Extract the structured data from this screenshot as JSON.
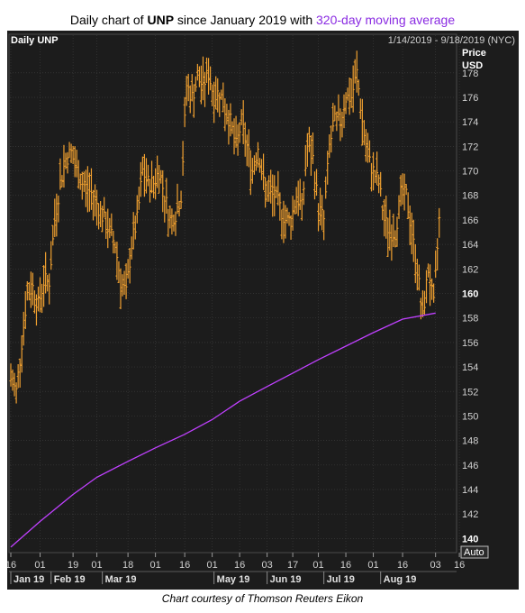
{
  "header": {
    "title_pre": "Daily chart of ",
    "ticker": "UNP",
    "title_mid": " since January 2019 with ",
    "ma_label": "320-day moving average"
  },
  "panel": {
    "label": "Daily UNP",
    "date_range": "1/14/2019 - 9/18/2019 (NYC)",
    "price_label": "Price",
    "currency": "USD",
    "auto_label": "Auto"
  },
  "caption": "Chart courtesy of Thomson Reuters Eikon",
  "colors": {
    "price": "#f0a030",
    "ma": "#c040ff",
    "background": "#1c1c1c",
    "grid": "#3a3a3a"
  },
  "chart_data": {
    "type": "ohlc",
    "ylim": [
      139,
      181
    ],
    "y_ticks": [
      140,
      142,
      144,
      146,
      148,
      150,
      152,
      154,
      156,
      158,
      160,
      162,
      164,
      166,
      168,
      170,
      172,
      174,
      176,
      178
    ],
    "highlighted_y_ticks": [
      140,
      160
    ],
    "x_ticks": [
      {
        "day": 0,
        "label": "16"
      },
      {
        "day": 16,
        "label": "01"
      },
      {
        "day": 34,
        "label": "19"
      },
      {
        "day": 47,
        "label": "01"
      },
      {
        "day": 64,
        "label": "18"
      },
      {
        "day": 79,
        "label": "01"
      },
      {
        "day": 95,
        "label": "16"
      },
      {
        "day": 110,
        "label": "01"
      },
      {
        "day": 125,
        "label": "16"
      },
      {
        "day": 140,
        "label": "03"
      },
      {
        "day": 154,
        "label": "17"
      },
      {
        "day": 168,
        "label": "01"
      },
      {
        "day": 183,
        "label": "16"
      },
      {
        "day": 198,
        "label": "01"
      },
      {
        "day": 214,
        "label": "16"
      },
      {
        "day": 232,
        "label": "03"
      },
      {
        "day": 245,
        "label": "16"
      }
    ],
    "months": [
      {
        "day": 0,
        "label": "Jan 19"
      },
      {
        "day": 22,
        "label": "Feb 19"
      },
      {
        "day": 50,
        "label": "Mar 19"
      },
      {
        "day": 111,
        "label": "May 19"
      },
      {
        "day": 140,
        "label": "Jun 19"
      },
      {
        "day": 171,
        "label": "Jul 19"
      },
      {
        "day": 202,
        "label": "Aug 19"
      }
    ],
    "moving_average": {
      "name": "320-day moving average",
      "days": [
        0,
        16,
        34,
        47,
        64,
        79,
        95,
        110,
        125,
        140,
        154,
        168,
        183,
        198,
        214,
        232
      ],
      "values": [
        139.3,
        141.4,
        143.6,
        145.0,
        146.3,
        147.4,
        148.5,
        149.7,
        151.2,
        152.4,
        153.5,
        154.6,
        155.7,
        156.8,
        157.9,
        158.4
      ]
    },
    "series_close": {
      "days": [
        0,
        3,
        6,
        9,
        12,
        15,
        18,
        21,
        24,
        27,
        30,
        33,
        36,
        39,
        42,
        45,
        48,
        51,
        54,
        57,
        60,
        63,
        66,
        69,
        72,
        75,
        78,
        81,
        84,
        87,
        90,
        93,
        96,
        99,
        102,
        105,
        108,
        111,
        114,
        117,
        120,
        123,
        126,
        129,
        132,
        135,
        138,
        141,
        144,
        147,
        150,
        153,
        156,
        159,
        162,
        165,
        168,
        171,
        174,
        177,
        180,
        183,
        186,
        189,
        192,
        195,
        198,
        201,
        204,
        207,
        210,
        213,
        216,
        219,
        222,
        225,
        228,
        231,
        234
      ],
      "values": [
        153,
        152,
        156,
        160,
        160.5,
        159,
        161,
        161,
        166,
        169,
        171,
        171.5,
        170,
        169,
        168.5,
        168,
        167,
        166,
        165,
        164,
        161,
        160,
        164,
        166,
        170,
        169,
        169,
        170,
        168,
        166,
        166.5,
        168,
        177,
        176,
        177.5,
        177,
        178,
        176,
        176.5,
        175,
        174,
        172,
        174,
        172,
        170,
        172,
        169,
        168,
        168,
        167,
        166,
        166,
        168,
        167,
        172,
        171,
        167,
        166,
        172,
        174,
        174,
        176,
        176,
        178,
        174,
        171,
        170,
        169,
        166,
        165,
        165,
        168,
        168,
        165,
        162,
        158,
        162,
        159,
        166
      ]
    }
  }
}
